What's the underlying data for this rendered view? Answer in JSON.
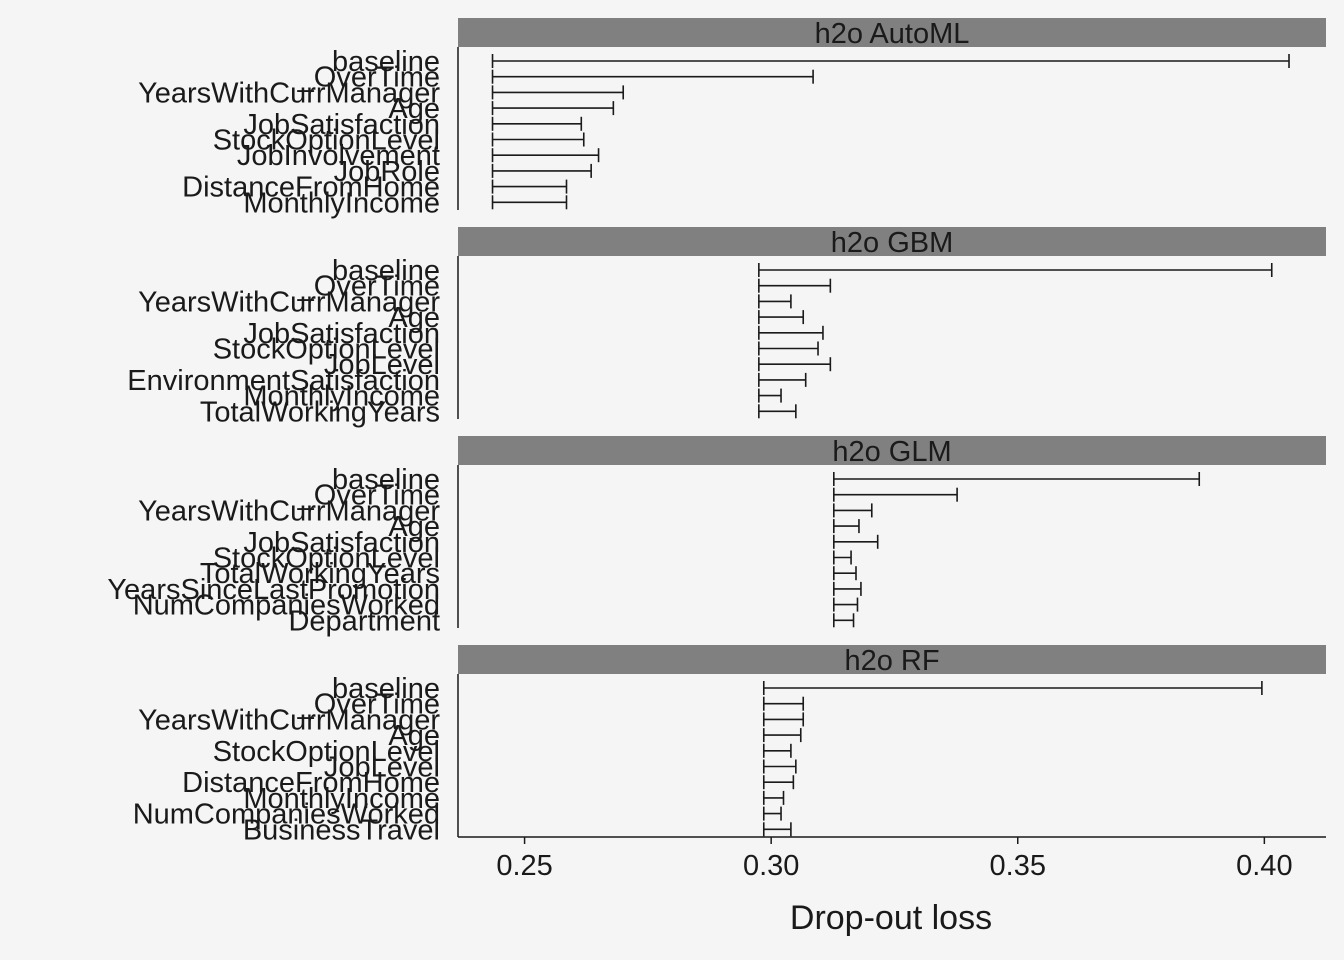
{
  "chart_data": {
    "type": "bar",
    "xlabel": "Drop-out loss",
    "xlim": [
      0.2365,
      0.4125
    ],
    "x_ticks": [
      0.25,
      0.3,
      0.35,
      0.4
    ],
    "x_tick_labels": [
      "0.25",
      "0.30",
      "0.35",
      "0.40"
    ],
    "grid": false,
    "colors": {
      "strip": "#808080",
      "background": "#f5f5f5",
      "bars": "#1a1a1a"
    },
    "panels": [
      {
        "title": "h2o AutoML",
        "full_model_loss": 0.2435,
        "variables": [
          "baseline",
          "_OverTime",
          "YearsWithCurrManager",
          "Age",
          "JobSatisfaction",
          "StockOptionLevel",
          "JobInvolvement",
          "JobRole",
          "DistanceFromHome",
          "MonthlyIncome"
        ],
        "values": [
          0.405,
          0.3085,
          0.27,
          0.268,
          0.2615,
          0.262,
          0.265,
          0.2635,
          0.2585,
          0.2585
        ]
      },
      {
        "title": "h2o GBM",
        "full_model_loss": 0.2975,
        "variables": [
          "baseline",
          "_OverTime",
          "YearsWithCurrManager",
          "Age",
          "JobSatisfaction",
          "StockOptionLevel",
          "JobLevel",
          "EnvironmentSatisfaction",
          "MonthlyIncome",
          "TotalWorkingYears"
        ],
        "values": [
          0.4015,
          0.312,
          0.304,
          0.3065,
          0.3105,
          0.3095,
          0.312,
          0.307,
          0.302,
          0.305
        ]
      },
      {
        "title": "h2o GLM",
        "full_model_loss": 0.3127,
        "variables": [
          "baseline",
          "_OverTime",
          "YearsWithCurrManager",
          "Age",
          "JobSatisfaction",
          "StockOptionLevel",
          "TotalWorkingYears",
          "YearsSinceLastPromotion",
          "NumCompaniesWorked",
          "Department"
        ],
        "values": [
          0.3868,
          0.3377,
          0.3204,
          0.3178,
          0.3216,
          0.3162,
          0.3172,
          0.3182,
          0.3175,
          0.3167
        ]
      },
      {
        "title": "h2o RF",
        "full_model_loss": 0.2985,
        "variables": [
          "baseline",
          "_OverTime",
          "YearsWithCurrManager",
          "Age",
          "StockOptionLevel",
          "JobLevel",
          "DistanceFromHome",
          "MonthlyIncome",
          "NumCompaniesWorked",
          "BusinessTravel"
        ],
        "values": [
          0.3995,
          0.3065,
          0.3065,
          0.306,
          0.304,
          0.305,
          0.3045,
          0.3025,
          0.302,
          0.304
        ]
      }
    ]
  }
}
